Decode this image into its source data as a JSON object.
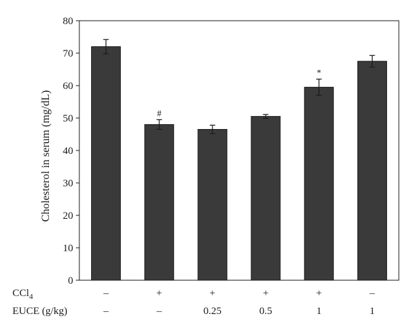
{
  "chart_data": {
    "type": "bar",
    "ylabel": "Cholesterol in serum (mg/dL)",
    "ylim": [
      0,
      80
    ],
    "yticks": [
      0,
      10,
      20,
      30,
      40,
      50,
      60,
      70,
      80
    ],
    "bar_color": "#3a3a3a",
    "values": [
      72,
      48,
      46.5,
      50.5,
      59.5,
      67.5
    ],
    "errors": [
      2.2,
      1.5,
      1.3,
      0.6,
      2.5,
      1.8
    ],
    "annotations": [
      "",
      "#",
      "",
      "",
      "*",
      ""
    ],
    "row_labels": [
      {
        "label": "CCl",
        "subscript": "4",
        "values": [
          "–",
          "+",
          "+",
          "+",
          "+",
          "–"
        ]
      },
      {
        "label": "EUCE (g/kg)",
        "subscript": "",
        "values": [
          "–",
          "–",
          "0.25",
          "0.5",
          "1",
          "1"
        ]
      }
    ]
  }
}
